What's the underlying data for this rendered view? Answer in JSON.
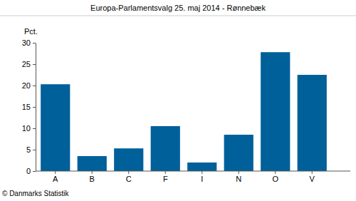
{
  "chart_data": {
    "type": "bar",
    "title": "Europa-Parlamentsvalg 25. maj 2014 - Rønnebæk",
    "y_label": "Pct.",
    "source": "© Danmarks Statistik",
    "categories": [
      "A",
      "B",
      "C",
      "F",
      "I",
      "N",
      "O",
      "V"
    ],
    "values": [
      20.3,
      3.5,
      5.3,
      10.5,
      2.0,
      8.5,
      27.8,
      22.5
    ],
    "color": "#00609a",
    "ylim": [
      0,
      30
    ],
    "yticks": [
      0,
      5,
      10,
      15,
      20,
      25,
      30
    ],
    "grid": false
  }
}
